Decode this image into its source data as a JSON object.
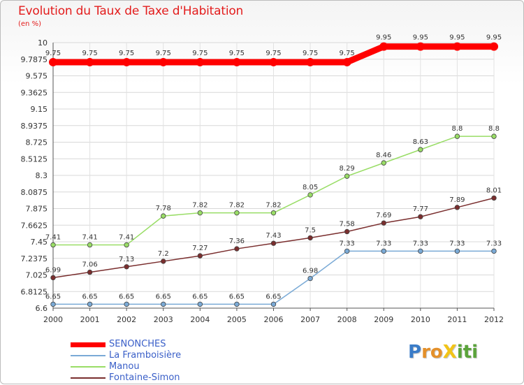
{
  "chart_data": {
    "type": "line",
    "title": "Evolution du Taux de Taxe d'Habitation",
    "subtitle": "(en %)",
    "xlabel": "",
    "ylabel": "",
    "categories": [
      "2000",
      "2001",
      "2002",
      "2003",
      "2004",
      "2005",
      "2006",
      "2007",
      "2008",
      "2009",
      "2010",
      "2011",
      "2012"
    ],
    "ylim": [
      6.6,
      10
    ],
    "yticks": [
      "6.6",
      "6.8125",
      "7.025",
      "7.2375",
      "7.45",
      "7.6625",
      "7.875",
      "8.0875",
      "8.3",
      "8.5125",
      "8.725",
      "8.9375",
      "9.15",
      "9.3625",
      "9.575",
      "9.7875",
      "10"
    ],
    "grid": true,
    "legend_position": "bottom-left",
    "series": [
      {
        "name": "SENONCHES",
        "color": "#ff0000",
        "values": [
          9.75,
          9.75,
          9.75,
          9.75,
          9.75,
          9.75,
          9.75,
          9.75,
          9.75,
          9.95,
          9.95,
          9.95,
          9.95
        ],
        "labels": [
          "9.75",
          "9.75",
          "9.75",
          "9.75",
          "9.75",
          "9.75",
          "9.75",
          "9.75",
          "9.75",
          "9.95",
          "9.95",
          "9.95",
          "9.95"
        ]
      },
      {
        "name": "La Framboisière",
        "color": "#7aaad6",
        "values": [
          6.65,
          6.65,
          6.65,
          6.65,
          6.65,
          6.65,
          6.65,
          6.98,
          7.33,
          7.33,
          7.33,
          7.33,
          7.33
        ],
        "labels": [
          "6.65",
          "6.65",
          "6.65",
          "6.65",
          "6.65",
          "6.65",
          "6.65",
          "6.98",
          "7.33",
          "7.33",
          "7.33",
          "7.33",
          "7.33"
        ]
      },
      {
        "name": "Manou",
        "color": "#99dd66",
        "values": [
          7.41,
          7.41,
          7.41,
          7.78,
          7.82,
          7.82,
          7.82,
          8.05,
          8.29,
          8.46,
          8.63,
          8.8,
          8.8
        ],
        "labels": [
          "7.41",
          "7.41",
          "7.41",
          "7.78",
          "7.82",
          "7.82",
          "7.82",
          "8.05",
          "8.29",
          "8.46",
          "8.63",
          "8.8",
          "8.8"
        ]
      },
      {
        "name": "Fontaine-Simon",
        "color": "#7a2e2e",
        "values": [
          6.99,
          7.06,
          7.13,
          7.2,
          7.27,
          7.36,
          7.43,
          7.5,
          7.58,
          7.69,
          7.77,
          7.89,
          8.01
        ],
        "labels": [
          "6.99",
          "7.06",
          "7.13",
          "7.2",
          "7.27",
          "7.36",
          "7.43",
          "7.5",
          "7.58",
          "7.69",
          "7.77",
          "7.89",
          "8.01"
        ]
      }
    ]
  },
  "logo": {
    "letters": [
      {
        "ch": "P",
        "color": "#3a7cc8"
      },
      {
        "ch": "r",
        "color": "#e4902a"
      },
      {
        "ch": "o",
        "color": "#e4902a"
      },
      {
        "ch": "X",
        "color": "#f2c418"
      },
      {
        "ch": "i",
        "color": "#5aa33a"
      },
      {
        "ch": "t",
        "color": "#5aa33a"
      },
      {
        "ch": "i",
        "color": "#5aa33a"
      }
    ]
  }
}
